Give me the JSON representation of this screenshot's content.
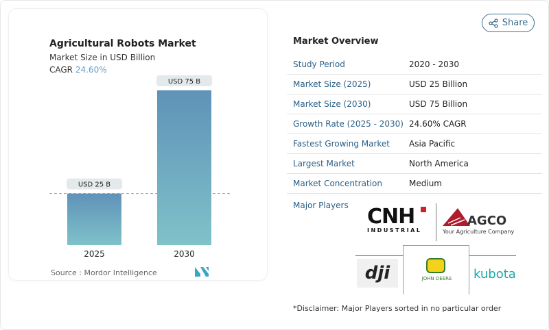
{
  "chart_data": {
    "type": "bar",
    "title": "Agricultural Robots Market",
    "subtitle": "Market Size in USD Billion",
    "cagr_label": "CAGR",
    "cagr_value": "24.60%",
    "categories": [
      "2025",
      "2030"
    ],
    "values": [
      25,
      75
    ],
    "data_labels": [
      "USD 25 B",
      "USD 75 B"
    ],
    "reference_line": 25,
    "ylim": [
      0,
      75
    ],
    "colors": {
      "bar_top": "#5f92b8",
      "bar_bottom": "#7fc2c9"
    }
  },
  "source": {
    "label": "Source :",
    "value": "Mordor Intelligence"
  },
  "share": {
    "label": "Share",
    "icon": "share-icon"
  },
  "overview": {
    "title": "Market Overview",
    "rows": [
      {
        "label": "Study Period",
        "value": "2020 - 2030"
      },
      {
        "label": "Market Size (2025)",
        "value": "USD 25 Billion"
      },
      {
        "label": "Market Size (2030)",
        "value": "USD 75 Billion"
      },
      {
        "label": "Growth Rate (2025 - 2030)",
        "value": "24.60% CAGR"
      },
      {
        "label": "Fastest Growing Market",
        "value": "Asia Pacific"
      },
      {
        "label": "Largest Market",
        "value": "North America"
      },
      {
        "label": "Market Concentration",
        "value": "Medium"
      }
    ],
    "major_players_label": "Major Players",
    "players": [
      "CNH INDUSTRIAL",
      "AGCO Your Agriculture Company",
      "dji",
      "JOHN DEERE",
      "Kubota"
    ]
  },
  "disclaimer": "*Disclaimer: Major Players sorted in no particular order"
}
